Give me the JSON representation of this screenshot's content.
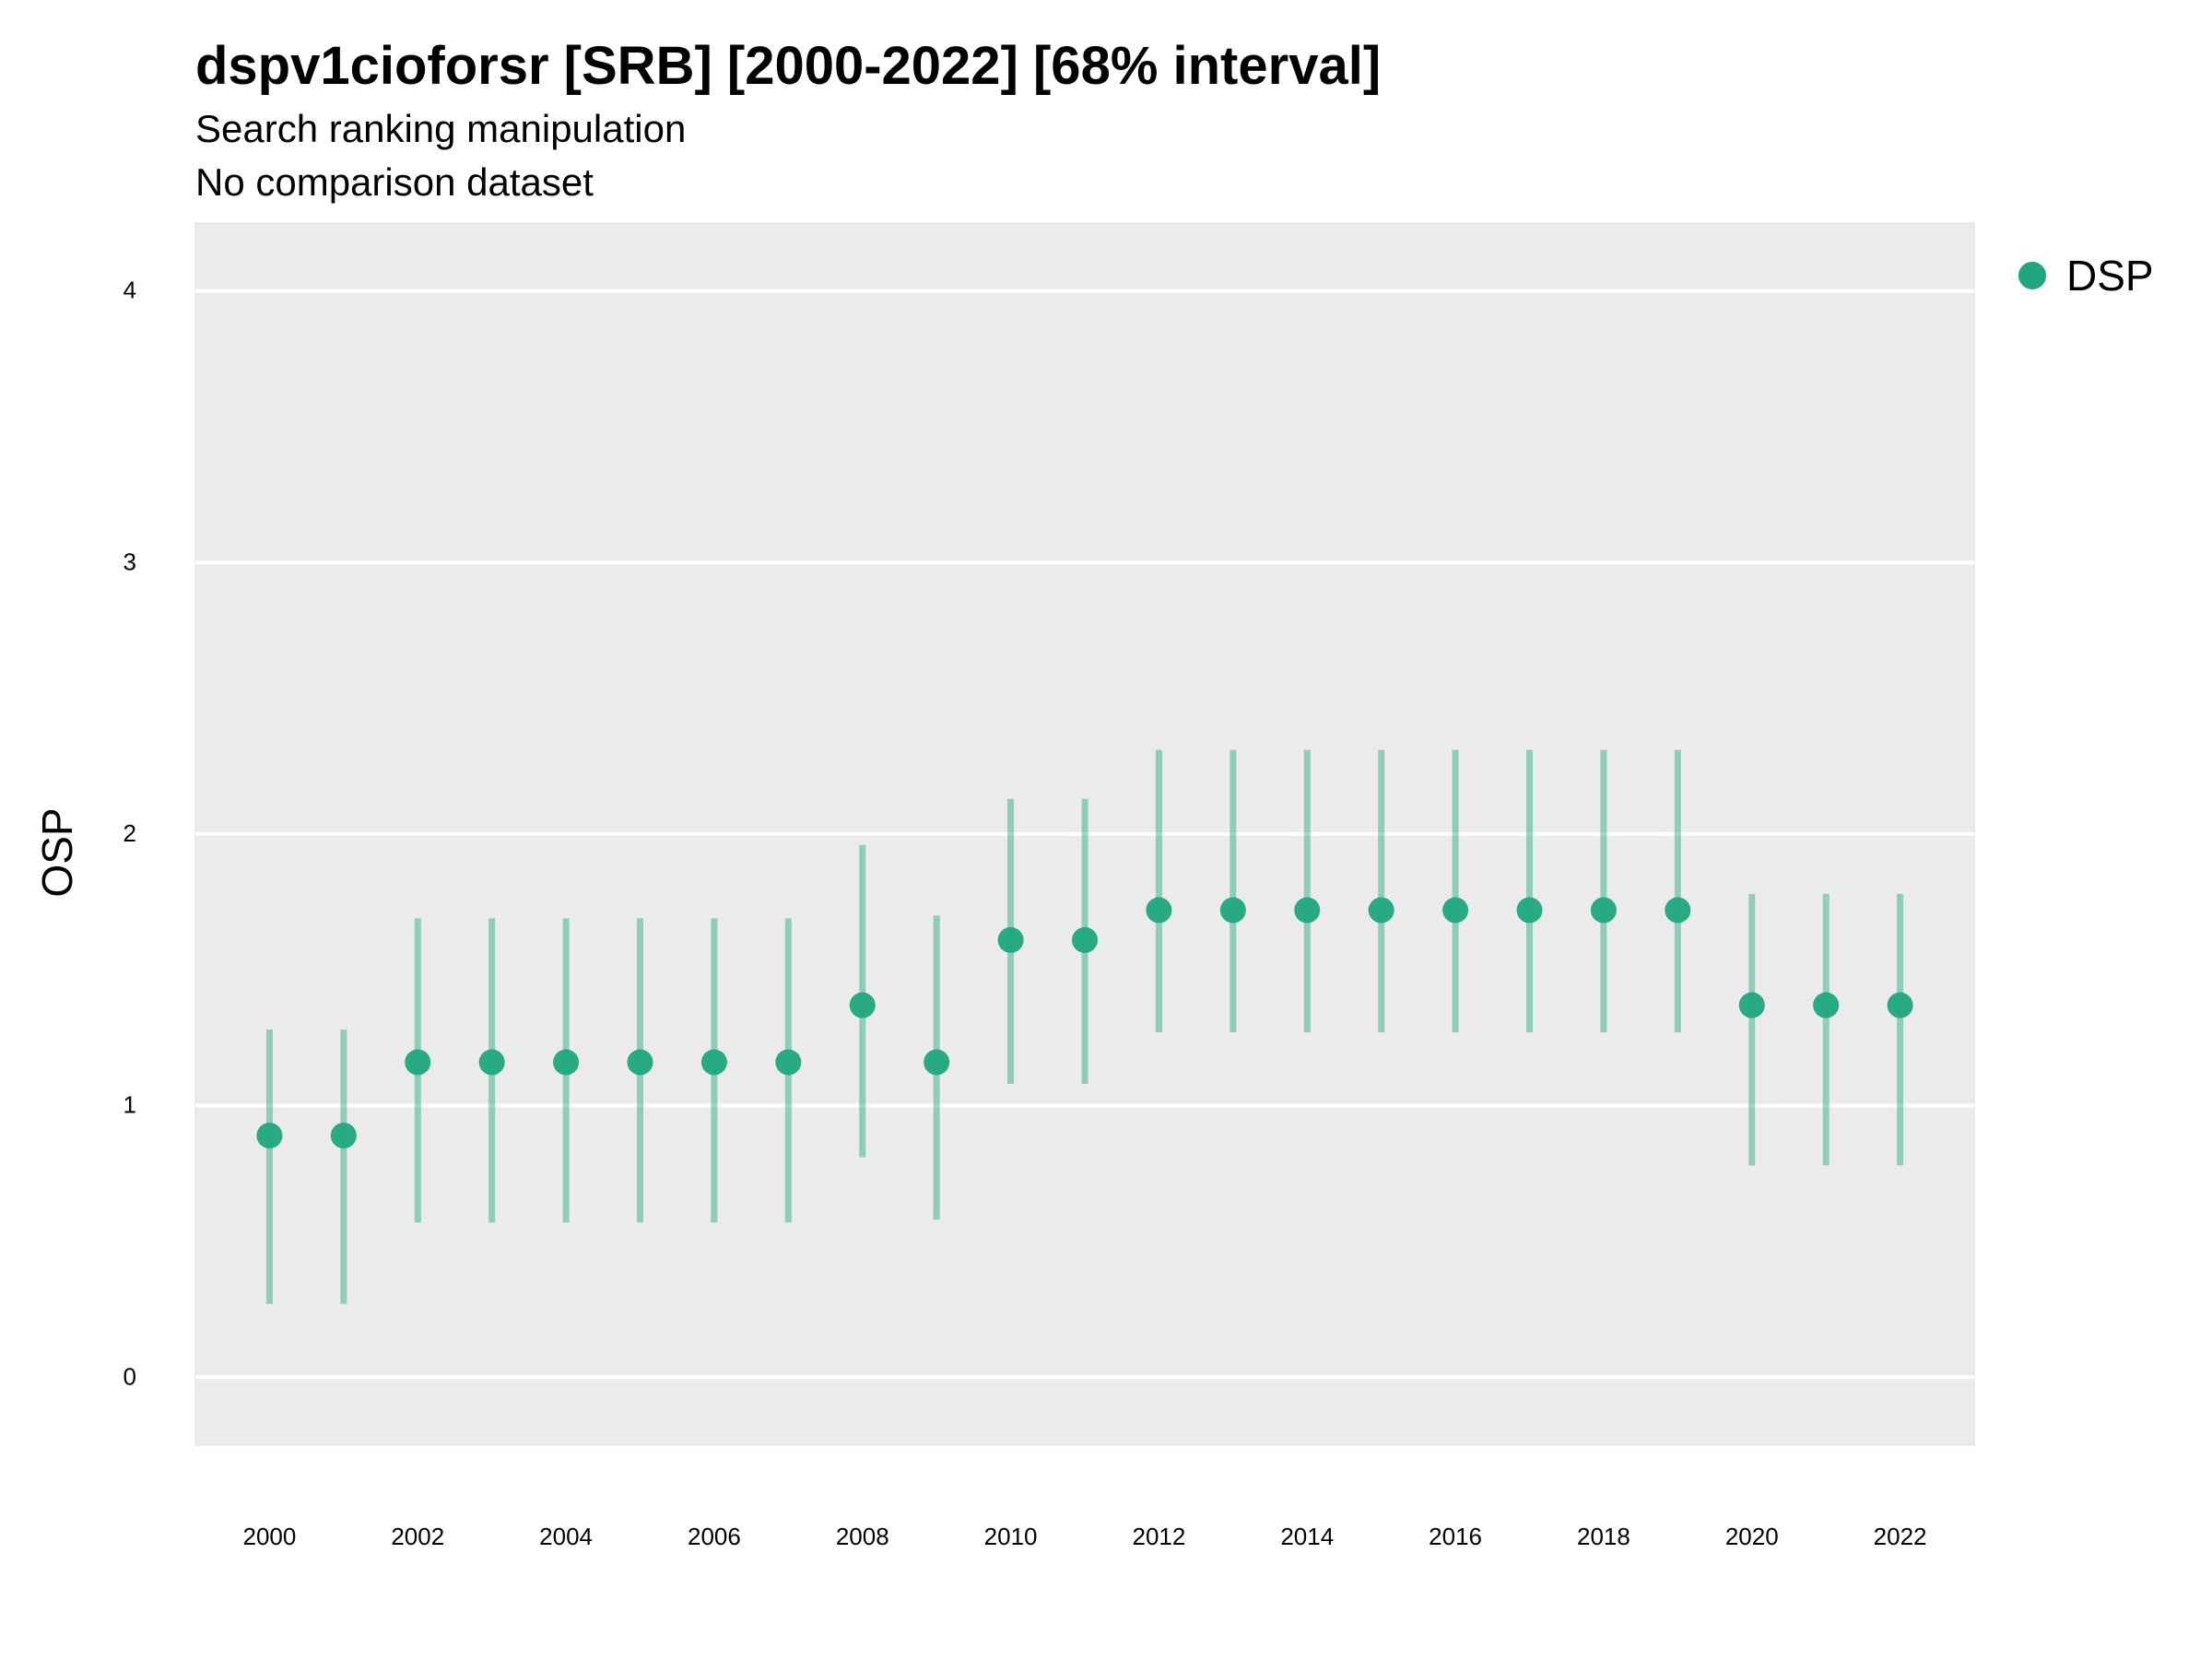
{
  "chart_data": {
    "type": "scatter",
    "title": "dspv1cioforsr [SRB] [2000-2022] [68% interval]",
    "subtitle": [
      "Search ranking manipulation",
      "No comparison dataset"
    ],
    "xlabel": "",
    "ylabel": "OSP",
    "xlim": [
      1999,
      2023
    ],
    "ylim": [
      -0.25,
      4.25
    ],
    "yticks": [
      0,
      1,
      2,
      3,
      4
    ],
    "xticks": [
      2000,
      2002,
      2004,
      2006,
      2008,
      2010,
      2012,
      2014,
      2016,
      2018,
      2020,
      2022
    ],
    "grid": true,
    "legend_position": "right",
    "series": [
      {
        "name": "DSP",
        "color": "#1fa67f",
        "x": [
          2000,
          2001,
          2002,
          2003,
          2004,
          2005,
          2006,
          2007,
          2008,
          2009,
          2010,
          2011,
          2012,
          2013,
          2014,
          2015,
          2016,
          2017,
          2018,
          2019,
          2020,
          2021,
          2022
        ],
        "y": [
          0.89,
          0.89,
          1.16,
          1.16,
          1.16,
          1.16,
          1.16,
          1.16,
          1.37,
          1.16,
          1.61,
          1.61,
          1.72,
          1.72,
          1.72,
          1.72,
          1.72,
          1.72,
          1.72,
          1.72,
          1.37,
          1.37,
          1.37
        ],
        "lower": [
          0.27,
          0.27,
          0.57,
          0.57,
          0.57,
          0.57,
          0.57,
          0.57,
          0.81,
          0.58,
          1.08,
          1.08,
          1.27,
          1.27,
          1.27,
          1.27,
          1.27,
          1.27,
          1.27,
          1.27,
          0.78,
          0.78,
          0.78
        ],
        "upper": [
          1.28,
          1.28,
          1.69,
          1.69,
          1.69,
          1.69,
          1.69,
          1.69,
          1.96,
          1.7,
          2.13,
          2.13,
          2.31,
          2.31,
          2.31,
          2.31,
          2.31,
          2.31,
          2.31,
          2.31,
          1.78,
          1.78,
          1.78
        ]
      }
    ]
  }
}
